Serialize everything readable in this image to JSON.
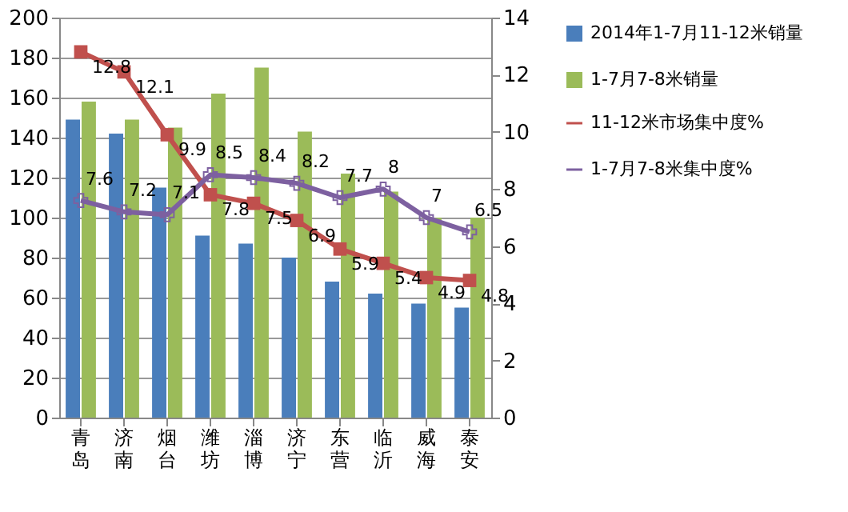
{
  "chart_data": {
    "type": "bar",
    "categories": [
      "青岛",
      "济南",
      "烟台",
      "潍坊",
      "淄博",
      "济宁",
      "东营",
      "临沂",
      "威海",
      "泰安"
    ],
    "series": [
      {
        "name": "2014年1-7月11-12米销量",
        "type": "bar",
        "color": "#4a7ebb",
        "values": [
          149,
          142,
          115,
          91,
          87,
          80,
          68,
          62,
          57,
          55
        ]
      },
      {
        "name": "1-7月7-8米销量",
        "type": "bar",
        "color": "#9bbb59",
        "values": [
          158,
          149,
          145,
          162,
          175,
          143,
          122,
          113,
          100,
          100
        ]
      },
      {
        "name": "11-12米市场集中度%",
        "type": "line",
        "axis": "y2",
        "marker": "square",
        "color": "#c0504d",
        "values": [
          12.8,
          12.1,
          9.9,
          7.8,
          7.5,
          6.9,
          5.9,
          5.4,
          4.9,
          4.8
        ],
        "value_labels": [
          "12.8",
          "12.1",
          "9.9",
          "7.8",
          "7.5",
          "6.9",
          "5.9",
          "5.4",
          "4.9",
          "4.8"
        ]
      },
      {
        "name": "1-7月7-8米集中度%",
        "type": "line",
        "axis": "y2",
        "marker": "cross",
        "color": "#7d60a0",
        "values": [
          7.6,
          7.2,
          7.1,
          8.5,
          8.4,
          8.2,
          7.7,
          8,
          7,
          6.5
        ],
        "value_labels": [
          "7.6",
          "7.2",
          "7.1",
          "8.5",
          "8.4",
          "8.2",
          "7.7",
          "8",
          "7",
          "6.5"
        ]
      }
    ],
    "ylim": [
      0,
      200
    ],
    "yticks": [
      0,
      20,
      40,
      60,
      80,
      100,
      120,
      140,
      160,
      180,
      200
    ],
    "y2lim": [
      0,
      14
    ],
    "y2ticks": [
      0,
      2,
      4,
      6,
      8,
      10,
      12,
      14
    ],
    "grid": "y",
    "legend": "right"
  }
}
